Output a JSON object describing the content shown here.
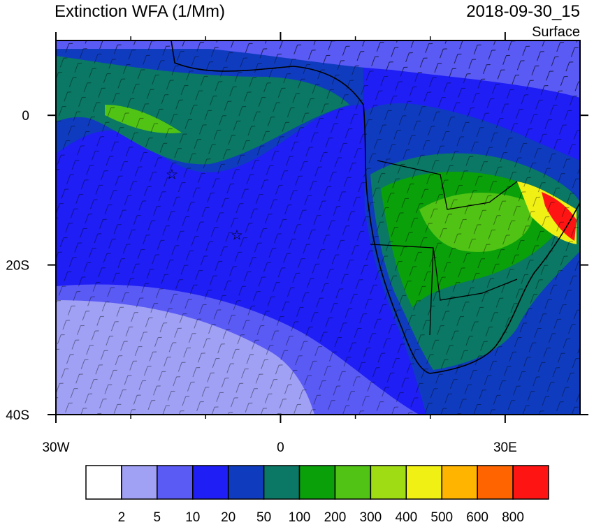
{
  "chart_data": {
    "type": "map",
    "title": "Extinction WFA (1/Mm)",
    "time": "2018-09-30_15",
    "level": "Surface",
    "xlim": [
      -30,
      40
    ],
    "ylim": [
      -40,
      10
    ],
    "xticks": [
      {
        "value": -30,
        "label": "30W"
      },
      0,
      {
        "value": 30,
        "label": "30E"
      }
    ],
    "yticks": [
      {
        "value": -40,
        "label": "40S"
      },
      {
        "value": -20,
        "label": "20S"
      },
      0
    ],
    "colorbar": {
      "levels": [
        2,
        5,
        10,
        20,
        50,
        100,
        200,
        300,
        400,
        500,
        600,
        800
      ],
      "colors": [
        "#ffffff",
        "#a0a0f5",
        "#5a5af5",
        "#1e1ef5",
        "#0f3cbe",
        "#0a7864",
        "#0aa00a",
        "#50c314",
        "#a0dc14",
        "#f0f014",
        "#ffb400",
        "#ff6400",
        "#ff1414"
      ]
    }
  }
}
